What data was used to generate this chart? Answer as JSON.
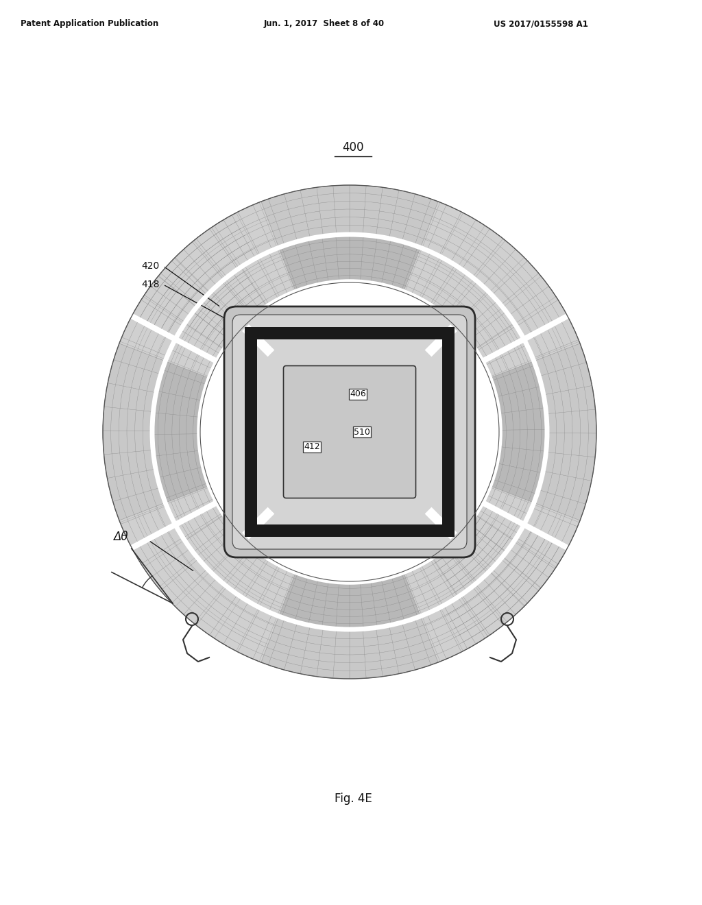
{
  "header_left": "Patent Application Publication",
  "header_center": "Jun. 1, 2017  Sheet 8 of 40",
  "header_right": "US 2017/0155598 A1",
  "caption": "Fig. 4E",
  "label_400": "400",
  "label_406": "406",
  "label_412": "412",
  "label_418": "418",
  "label_420": "420",
  "label_510": "510",
  "label_delta_theta": "Δθ",
  "bg_color": "#ffffff",
  "dark_color": "#333333",
  "medium_color": "#888888"
}
